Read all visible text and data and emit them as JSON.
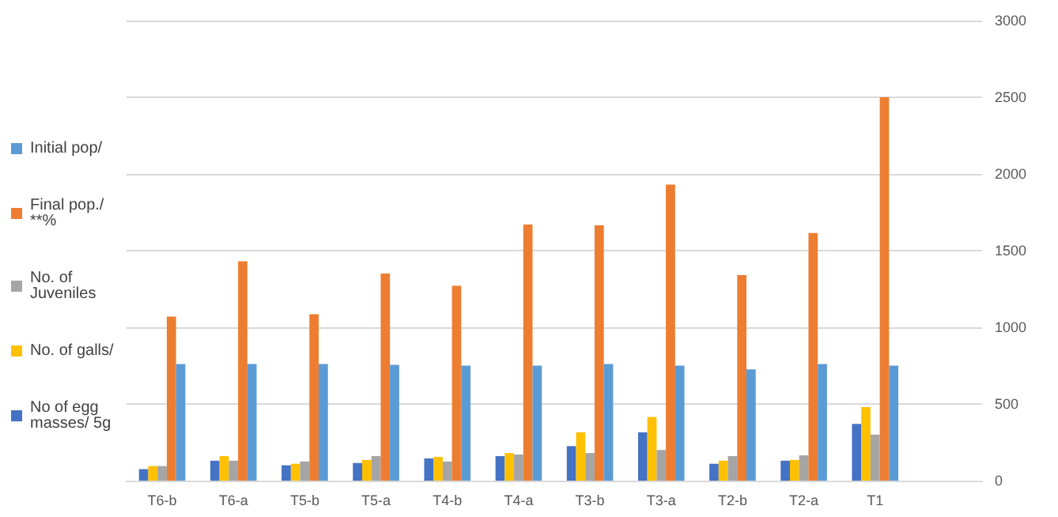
{
  "chart_data": {
    "type": "bar",
    "categories": [
      "T6-b",
      "T6-a",
      "T5-b",
      "T5-a",
      "T4-b",
      "T4-a",
      "T3-b",
      "T3-a",
      "T2-b",
      "T2-a",
      "T1",
      null
    ],
    "series": [
      {
        "name": "No of egg masses/ 5g",
        "color": "#4472c4",
        "values": [
          75,
          130,
          100,
          115,
          145,
          160,
          225,
          315,
          110,
          130,
          370,
          null
        ]
      },
      {
        "name": "No. of galls/",
        "color": "#ffc000",
        "values": [
          95,
          160,
          110,
          135,
          155,
          180,
          315,
          415,
          130,
          135,
          480,
          null
        ]
      },
      {
        "name": "No. of Juveniles",
        "color": "#a5a5a5",
        "values": [
          95,
          130,
          125,
          160,
          125,
          170,
          180,
          200,
          160,
          165,
          300,
          null
        ]
      },
      {
        "name": "Final pop./**%",
        "color": "#ed7d31",
        "values": [
          1070,
          1430,
          1085,
          1350,
          1270,
          1670,
          1665,
          1930,
          1340,
          1615,
          2500,
          null
        ]
      },
      {
        "name": "Initial pop/",
        "color": "#5b9bd5",
        "values": [
          760,
          760,
          760,
          755,
          750,
          750,
          760,
          750,
          725,
          760,
          750,
          null
        ]
      }
    ],
    "ylim": [
      0,
      3000
    ],
    "yticks": [
      0,
      500,
      1000,
      1500,
      2000,
      2500,
      3000
    ],
    "grid": "y",
    "legend": "left"
  }
}
